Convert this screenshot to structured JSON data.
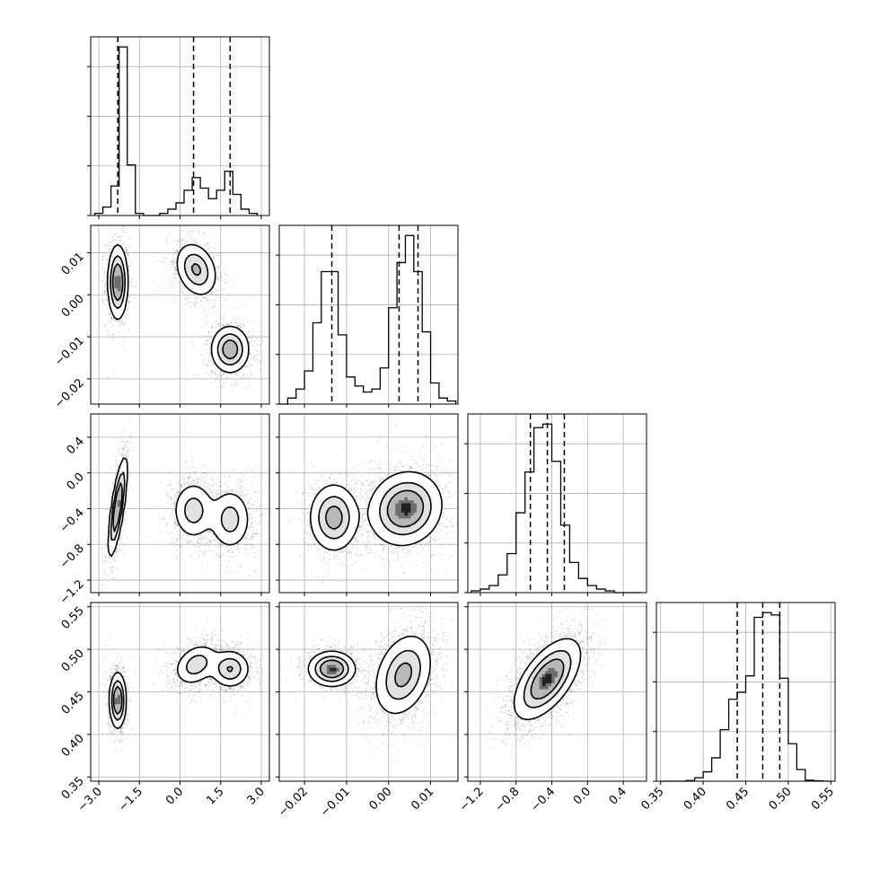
{
  "chart_data": {
    "type": "corner",
    "colors": {
      "contour": "#000000",
      "grid": "#b0b0b0",
      "samples": "#000000"
    },
    "grid": true,
    "parameters": [
      {
        "ticks": [
          "−3.0",
          "−1.5",
          "0.0",
          "1.5",
          "3.0"
        ],
        "tick_values": [
          -3.0,
          -1.5,
          0.0,
          1.5,
          3.0
        ],
        "range": [
          -3.3,
          3.3
        ]
      },
      {
        "ticks": [
          "−0.02",
          "−0.01",
          "0.00",
          "0.01"
        ],
        "tick_values": [
          -0.02,
          -0.01,
          0.0,
          0.01
        ],
        "range": [
          -0.026,
          0.0165
        ]
      },
      {
        "ticks": [
          "−1.2",
          "−0.8",
          "−0.4",
          "0.0",
          "0.4"
        ],
        "tick_values": [
          -1.2,
          -0.8,
          -0.4,
          0.0,
          0.4
        ],
        "range": [
          -1.34,
          0.66
        ]
      },
      {
        "ticks": [
          "0.35",
          "0.40",
          "0.45",
          "0.50",
          "0.55"
        ],
        "tick_values": [
          0.35,
          0.4,
          0.45,
          0.5,
          0.55
        ],
        "range": [
          0.345,
          0.555
        ]
      }
    ],
    "diagonal": [
      {
        "param": 0,
        "bin_edges": [
          -3.15,
          -2.85,
          -2.55,
          -2.25,
          -1.95,
          -1.65,
          -1.35,
          -1.05,
          -0.75,
          -0.45,
          -0.15,
          0.15,
          0.45,
          0.75,
          1.05,
          1.35,
          1.65,
          1.95,
          2.25,
          2.55,
          2.85
        ],
        "counts": [
          1,
          4,
          14,
          80,
          24,
          1,
          0,
          0,
          1,
          3,
          6,
          12,
          18,
          13,
          8,
          12,
          21,
          10,
          3,
          1
        ],
        "quantile_lines": [
          -2.3,
          0.5,
          1.85
        ]
      },
      {
        "param": 1,
        "bin_edges": [
          -0.026,
          -0.024,
          -0.022,
          -0.02,
          -0.018,
          -0.016,
          -0.014,
          -0.012,
          -0.01,
          -0.008,
          -0.006,
          -0.004,
          -0.002,
          0.0,
          0.002,
          0.004,
          0.006,
          0.008,
          0.01,
          0.012,
          0.014,
          0.016
        ],
        "counts": [
          0,
          2,
          5,
          11,
          27,
          44,
          44,
          23,
          9,
          6,
          4,
          5,
          12,
          32,
          47,
          56,
          44,
          24,
          7,
          2,
          1
        ],
        "quantile_lines": [
          -0.0135,
          0.0025,
          0.007
        ]
      },
      {
        "param": 2,
        "bin_edges": [
          -1.3,
          -1.2,
          -1.1,
          -1.0,
          -0.9,
          -0.8,
          -0.7,
          -0.6,
          -0.5,
          -0.4,
          -0.3,
          -0.2,
          -0.1,
          0.0,
          0.1,
          0.2,
          0.3,
          0.4,
          0.5,
          0.6
        ],
        "counts": [
          1,
          2,
          4,
          10,
          22,
          45,
          68,
          93,
          95,
          74,
          38,
          17,
          8,
          4,
          2,
          1,
          0,
          0,
          0
        ],
        "quantile_lines": [
          -0.64,
          -0.45,
          -0.26
        ]
      },
      {
        "param": 3,
        "bin_edges": [
          0.35,
          0.36,
          0.37,
          0.38,
          0.39,
          0.4,
          0.41,
          0.42,
          0.43,
          0.44,
          0.45,
          0.46,
          0.47,
          0.48,
          0.49,
          0.5,
          0.51,
          0.52,
          0.53,
          0.54,
          0.55
        ],
        "counts": [
          0,
          0,
          0,
          0.3,
          1.5,
          4,
          10,
          22,
          35,
          38,
          45,
          70,
          72,
          71,
          44,
          16,
          5,
          0.4,
          0.2,
          0
        ],
        "quantile_lines": [
          0.44,
          0.47,
          0.49
        ]
      }
    ],
    "pairs": [
      {
        "x": 0,
        "y": 1,
        "blobs": [
          {
            "cx": -2.3,
            "cy": 0.003,
            "sx": 0.18,
            "sy": 0.0043,
            "rho": 0.0,
            "w": 0.33
          },
          {
            "cx": 0.6,
            "cy": 0.006,
            "sx": 0.38,
            "sy": 0.0032,
            "rho": -0.25,
            "w": 0.33
          },
          {
            "cx": 1.85,
            "cy": -0.013,
            "sx": 0.35,
            "sy": 0.0028,
            "rho": 0.0,
            "w": 0.34
          }
        ]
      },
      {
        "x": 0,
        "y": 2,
        "blobs": [
          {
            "cx": -2.3,
            "cy": -0.38,
            "sx": 0.17,
            "sy": 0.27,
            "rho": 0.75,
            "w": 0.33
          },
          {
            "cx": 0.5,
            "cy": -0.42,
            "sx": 0.38,
            "sy": 0.16,
            "rho": 0.0,
            "w": 0.33
          },
          {
            "cx": 1.85,
            "cy": -0.52,
            "sx": 0.38,
            "sy": 0.17,
            "rho": 0.0,
            "w": 0.34
          }
        ]
      },
      {
        "x": 1,
        "y": 2,
        "blobs": [
          {
            "cx": -0.013,
            "cy": -0.5,
            "sx": 0.0029,
            "sy": 0.19,
            "rho": 0.0,
            "w": 0.33
          },
          {
            "cx": 0.004,
            "cy": -0.4,
            "sx": 0.0042,
            "sy": 0.2,
            "rho": 0.1,
            "w": 0.67
          }
        ]
      },
      {
        "x": 0,
        "y": 3,
        "blobs": [
          {
            "cx": -2.3,
            "cy": 0.44,
            "sx": 0.15,
            "sy": 0.016,
            "rho": 0.0,
            "w": 0.33
          },
          {
            "cx": 0.6,
            "cy": 0.482,
            "sx": 0.4,
            "sy": 0.012,
            "rho": 0.3,
            "w": 0.33
          },
          {
            "cx": 1.85,
            "cy": 0.477,
            "sx": 0.36,
            "sy": 0.011,
            "rho": 0.0,
            "w": 0.34
          }
        ]
      },
      {
        "x": 1,
        "y": 3,
        "blobs": [
          {
            "cx": -0.0135,
            "cy": 0.477,
            "sx": 0.0027,
            "sy": 0.01,
            "rho": 0.0,
            "w": 0.33
          },
          {
            "cx": 0.0035,
            "cy": 0.47,
            "sx": 0.0034,
            "sy": 0.024,
            "rho": 0.3,
            "w": 0.67
          }
        ]
      },
      {
        "x": 2,
        "y": 3,
        "blobs": [
          {
            "cx": -0.45,
            "cy": 0.465,
            "sx": 0.18,
            "sy": 0.023,
            "rho": 0.6,
            "w": 1.0
          }
        ]
      }
    ]
  }
}
